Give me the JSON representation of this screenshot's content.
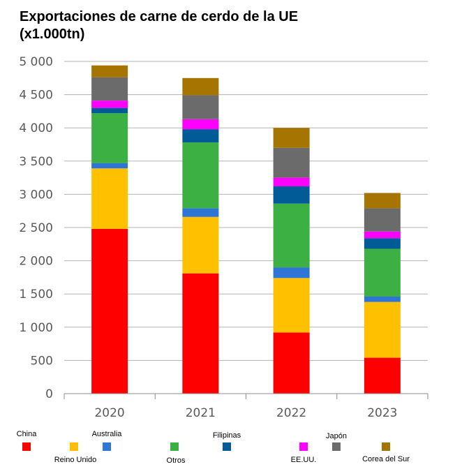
{
  "chart_data": {
    "type": "bar",
    "stacked": true,
    "title_line1": "Exportaciones de carne de cerdo de la UE",
    "title_line2": "(x1.000tn)",
    "categories": [
      "2020",
      "2021",
      "2022",
      "2023"
    ],
    "ylim": [
      0,
      5000
    ],
    "yticks": [
      0,
      500,
      1000,
      1500,
      2000,
      2500,
      3000,
      3500,
      4000,
      4500,
      5000
    ],
    "ytick_labels": [
      "0",
      "500",
      "1 000",
      "1 500",
      "2 000",
      "2 500",
      "3 000",
      "3 500",
      "4 000",
      "4 500",
      "5 000"
    ],
    "grid": true,
    "legend_position": "bottom",
    "series": [
      {
        "name": "China",
        "color": "#ff0000",
        "values": [
          2480,
          1810,
          920,
          540
        ]
      },
      {
        "name": "Reino Unido",
        "color": "#ffc000",
        "values": [
          910,
          850,
          820,
          840
        ]
      },
      {
        "name": "Australia",
        "color": "#2e75d6",
        "values": [
          80,
          130,
          160,
          80
        ]
      },
      {
        "name": "Otros",
        "color": "#3cb043",
        "values": [
          750,
          990,
          960,
          720
        ]
      },
      {
        "name": "Filipinas",
        "color": "#005b96",
        "values": [
          80,
          200,
          260,
          160
        ]
      },
      {
        "name": "EE.UU.",
        "color": "#ff00ff",
        "values": [
          110,
          150,
          130,
          100
        ]
      },
      {
        "name": "Japón",
        "color": "#6b6b6b",
        "values": [
          350,
          360,
          450,
          350
        ]
      },
      {
        "name": "Corea del Sur",
        "color": "#a67400",
        "values": [
          180,
          260,
          300,
          230
        ]
      }
    ]
  }
}
